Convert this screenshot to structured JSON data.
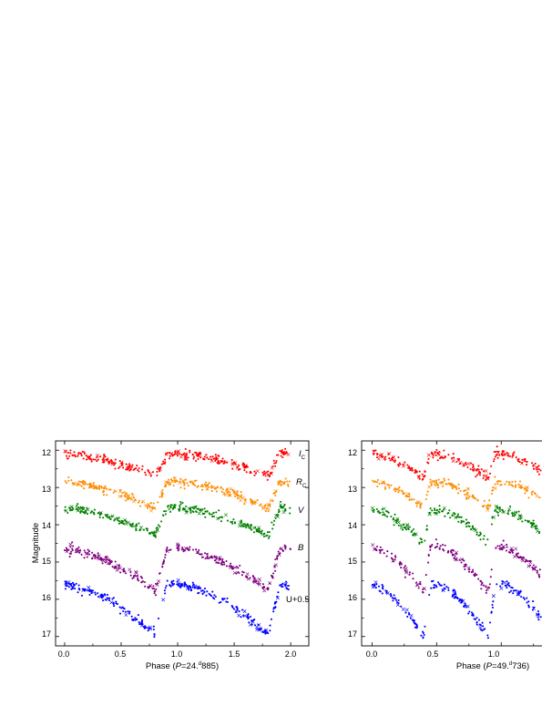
{
  "colors": {
    "I": "#ff0000",
    "R": "#ff8c00",
    "V": "#008000",
    "B": "#800080",
    "U": "#0000ff"
  },
  "chart_data": [
    {
      "type": "scatter",
      "ylabel": "Magnitude",
      "xlabel_prefix": "Phase (",
      "xlabel_var": "P",
      "xlabel_value": "=24.",
      "xlabel_sup": "d",
      "xlabel_suffix": "885)",
      "xlim": [
        -0.08,
        2.16
      ],
      "ylim": [
        17.25,
        11.75
      ],
      "y_reversed": true,
      "xticks": [
        "0.0",
        "0.5",
        "1.0",
        "1.5",
        "2.0"
      ],
      "yticks": [
        "12",
        "13",
        "14",
        "15",
        "16",
        "17"
      ],
      "period_phase": 1.0,
      "eclipses": [
        {
          "center": 0.8,
          "width": 0.08
        },
        {
          "center": 1.8,
          "width": 0.08
        }
      ],
      "bands": [
        {
          "key": "I",
          "label": "I",
          "sub": "C",
          "x_range": [
            0.0,
            2.0
          ],
          "max_mag": 12.1,
          "min_mag": 12.7,
          "eclipse_depth": 0.05
        },
        {
          "key": "R",
          "label": "R",
          "sub": "C",
          "x_range": [
            0.0,
            2.0
          ],
          "max_mag": 12.85,
          "min_mag": 13.55,
          "eclipse_depth": 0.05
        },
        {
          "key": "V",
          "label": "V",
          "sub": "",
          "x_range": [
            0.0,
            2.0
          ],
          "max_mag": 13.55,
          "min_mag": 14.3,
          "eclipse_depth": 0.05
        },
        {
          "key": "B",
          "label": "B",
          "sub": "",
          "x_range": [
            0.0,
            2.0
          ],
          "max_mag": 14.65,
          "min_mag": 15.75,
          "eclipse_depth": 0.05
        },
        {
          "key": "U",
          "label": "U+0.5",
          "sub": "",
          "x_range": [
            0.0,
            2.0
          ],
          "max_mag": 15.6,
          "min_mag": 16.95,
          "eclipse_depth": 0.05
        }
      ]
    },
    {
      "type": "scatter",
      "ylabel": "",
      "xlabel_prefix": "Phase (",
      "xlabel_var": "P",
      "xlabel_value": "=49.",
      "xlabel_sup": "d",
      "xlabel_suffix": "736)",
      "xlim": [
        -0.08,
        1.4
      ],
      "ylim": [
        17.25,
        11.75
      ],
      "y_reversed": true,
      "xticks": [
        "0.0",
        "0.5",
        "1.0"
      ],
      "yticks": [
        "12",
        "13",
        "14",
        "15",
        "16",
        "17"
      ],
      "period_phase": 0.5,
      "eclipses": [
        {
          "center": 0.4,
          "width": 0.08
        },
        {
          "center": 0.9,
          "width": 0.08
        }
      ],
      "bands": [
        {
          "key": "I",
          "label": "",
          "sub": "",
          "x_range": [
            0.0,
            1.4
          ],
          "max_mag": 12.1,
          "min_mag": 12.75,
          "eclipse_depth": 0.05
        },
        {
          "key": "R",
          "label": "",
          "sub": "",
          "x_range": [
            0.0,
            1.4
          ],
          "max_mag": 12.85,
          "min_mag": 13.55,
          "eclipse_depth": 0.05
        },
        {
          "key": "V",
          "label": "",
          "sub": "",
          "x_range": [
            0.0,
            1.4
          ],
          "max_mag": 13.6,
          "min_mag": 14.5,
          "eclipse_depth": 0.05
        },
        {
          "key": "B",
          "label": "",
          "sub": "",
          "x_range": [
            0.0,
            1.4
          ],
          "max_mag": 14.6,
          "min_mag": 15.8,
          "eclipse_depth": 0.05
        },
        {
          "key": "U",
          "label": "",
          "sub": "",
          "x_range": [
            0.0,
            1.4
          ],
          "max_mag": 15.6,
          "min_mag": 17.0,
          "eclipse_depth": 0.05
        }
      ]
    }
  ]
}
